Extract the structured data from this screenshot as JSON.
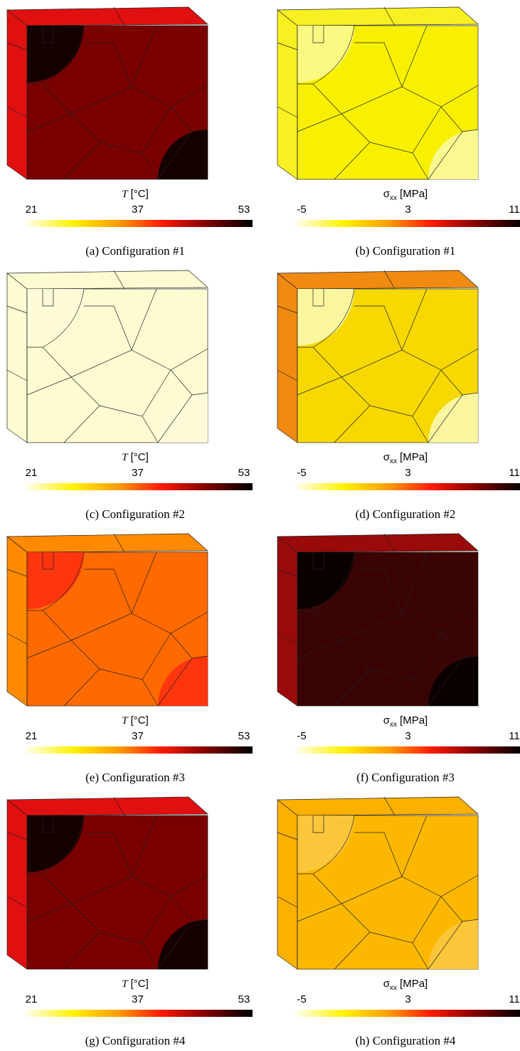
{
  "panels": [
    {
      "caption": "(a) Configuration #1",
      "field": {
        "symbol": "T",
        "unit": "[°C]"
      },
      "ticks": [
        21,
        37,
        53
      ],
      "color": "#7a0000",
      "side": "#e01010",
      "spots": [
        "#0a0000",
        "#0a0000"
      ]
    },
    {
      "caption": "(b) Configuration #1",
      "field": {
        "symbol": "σ",
        "sub": "xx",
        "unit": "[MPa]"
      },
      "ticks": [
        -5,
        3,
        11
      ],
      "color": "#f8f000",
      "side": "#f8f020",
      "spots": [
        "#fafa90",
        "#fafaa0"
      ]
    },
    {
      "caption": "(c) Configuration #2",
      "field": {
        "symbol": "T",
        "unit": "[°C]"
      },
      "ticks": [
        21,
        37,
        53
      ],
      "color": "#fdfbd2",
      "side": "#fdfbd2",
      "spots": [
        "#fdfbd8",
        "#fdfbd8"
      ]
    },
    {
      "caption": "(d) Configuration #2",
      "field": {
        "symbol": "σ",
        "sub": "xx",
        "unit": "[MPa]"
      },
      "ticks": [
        -5,
        3,
        11
      ],
      "color": "#f7d800",
      "side": "#f08a10",
      "spots": [
        "#fafab0",
        "#fafab0"
      ]
    },
    {
      "caption": "(e) Configuration #3",
      "field": {
        "symbol": "T",
        "unit": "[°C]"
      },
      "ticks": [
        21,
        37,
        53
      ],
      "color": "#ff6a00",
      "side": "#ff8a00",
      "spots": [
        "#ff3010",
        "#ff3010"
      ]
    },
    {
      "caption": "(f) Configuration #3",
      "field": {
        "symbol": "σ",
        "sub": "xx",
        "unit": "[MPa]"
      },
      "ticks": [
        -5,
        3,
        11
      ],
      "color": "#3a0404",
      "side": "#9a0a0a",
      "spots": [
        "#050000",
        "#050000"
      ]
    },
    {
      "caption": "(g) Configuration #4",
      "field": {
        "symbol": "T",
        "unit": "[°C]"
      },
      "ticks": [
        21,
        37,
        53
      ],
      "color": "#7a0000",
      "side": "#e01010",
      "spots": [
        "#0a0000",
        "#0a0000"
      ]
    },
    {
      "caption": "(h) Configuration #4",
      "field": {
        "symbol": "σ",
        "sub": "xx",
        "unit": "[MPa]"
      },
      "ticks": [
        -5,
        3,
        11
      ],
      "color": "#fcb800",
      "side": "#fcb000",
      "spots": [
        "#fcc840",
        "#fcc840"
      ]
    }
  ]
}
